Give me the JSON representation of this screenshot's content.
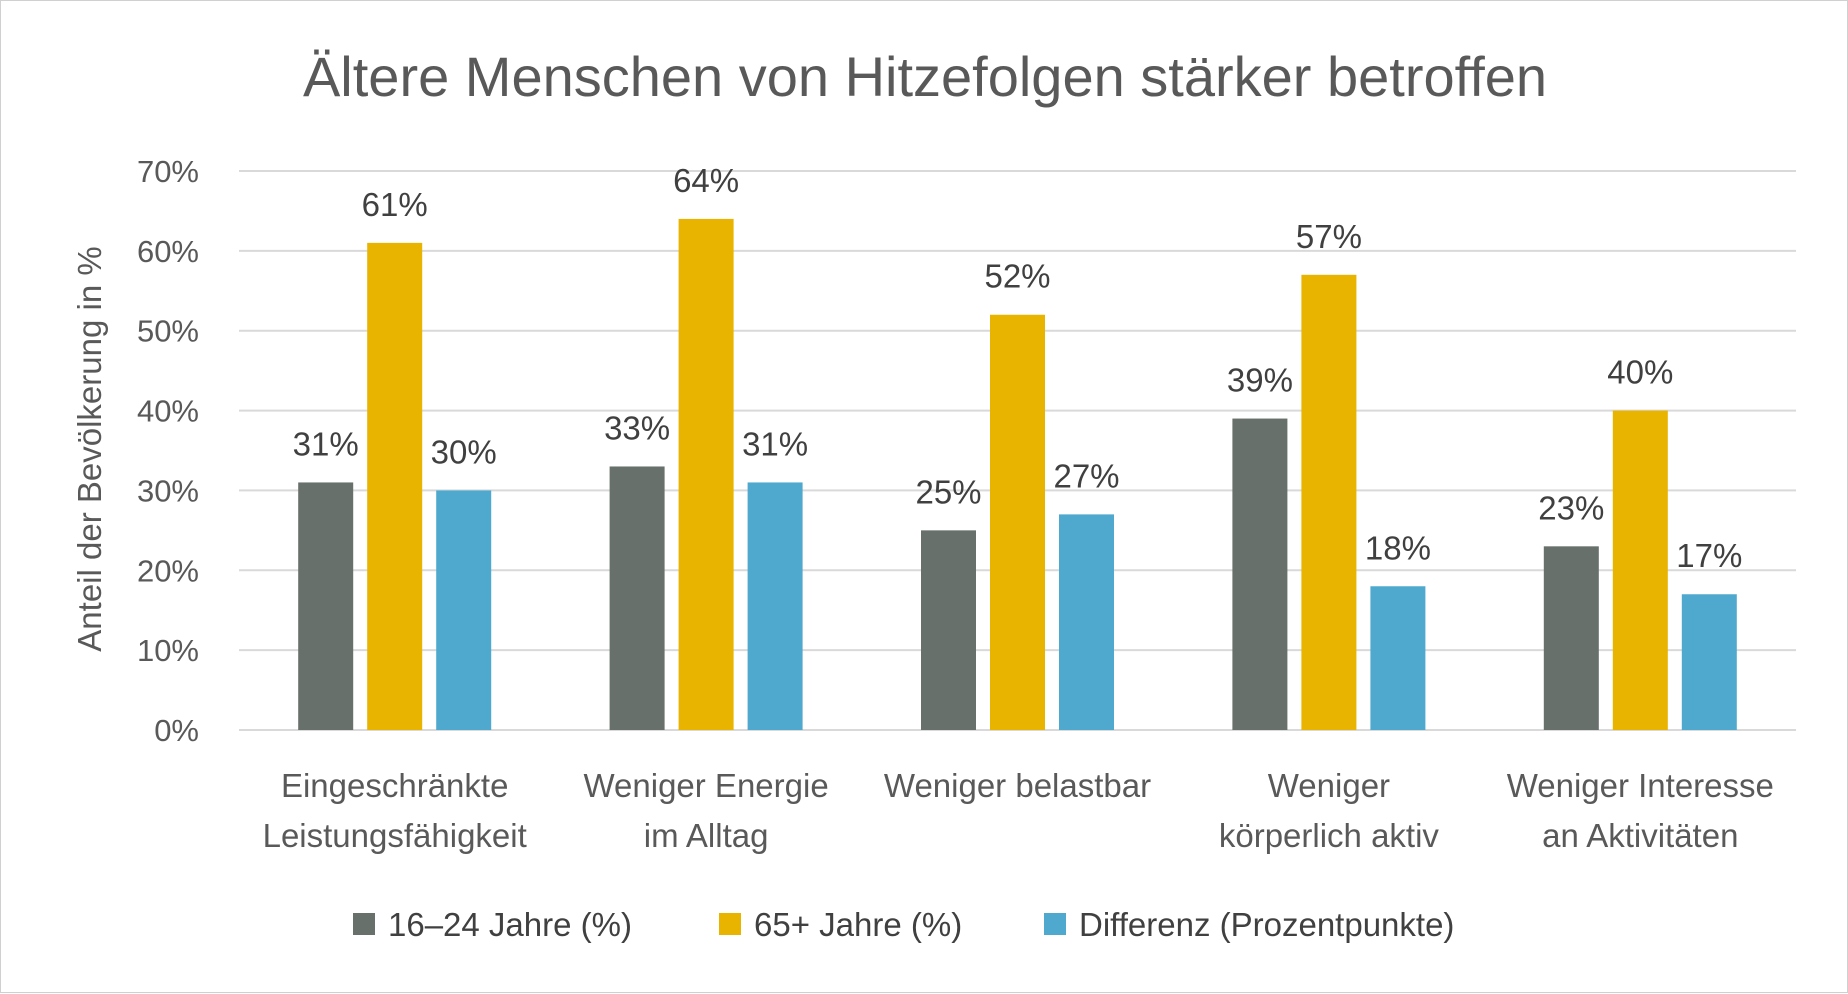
{
  "chart_data": {
    "type": "bar",
    "title": "Ältere Menschen von Hitzefolgen stärker betroffen",
    "ylabel": "Anteil der Bevölkerung in %",
    "xlabel": "",
    "ylim": [
      0,
      70
    ],
    "yticks": [
      "0%",
      "10%",
      "20%",
      "30%",
      "40%",
      "50%",
      "60%",
      "70%"
    ],
    "categories": [
      [
        "Eingeschränkte",
        "Leistungsfähigkeit"
      ],
      [
        "Weniger Energie",
        "im Alltag"
      ],
      [
        "Weniger belastbar"
      ],
      [
        "Weniger",
        "körperlich aktiv"
      ],
      [
        "Weniger Interesse",
        "an Aktivitäten"
      ]
    ],
    "series": [
      {
        "name": "16–24 Jahre (%)",
        "color": "#67706a",
        "values": [
          31,
          33,
          25,
          39,
          23
        ],
        "labels": [
          "31%",
          "33%",
          "25%",
          "39%",
          "23%"
        ]
      },
      {
        "name": "65+ Jahre (%)",
        "color": "#e8b400",
        "values": [
          61,
          64,
          52,
          57,
          40
        ],
        "labels": [
          "61%",
          "64%",
          "52%",
          "57%",
          "40%"
        ]
      },
      {
        "name": "Differenz (Prozentpunkte)",
        "color": "#4fa9ce",
        "values": [
          30,
          31,
          27,
          18,
          17
        ],
        "labels": [
          "30%",
          "31%",
          "27%",
          "18%",
          "17%"
        ]
      }
    ],
    "grid": true,
    "legend": "bottom"
  }
}
